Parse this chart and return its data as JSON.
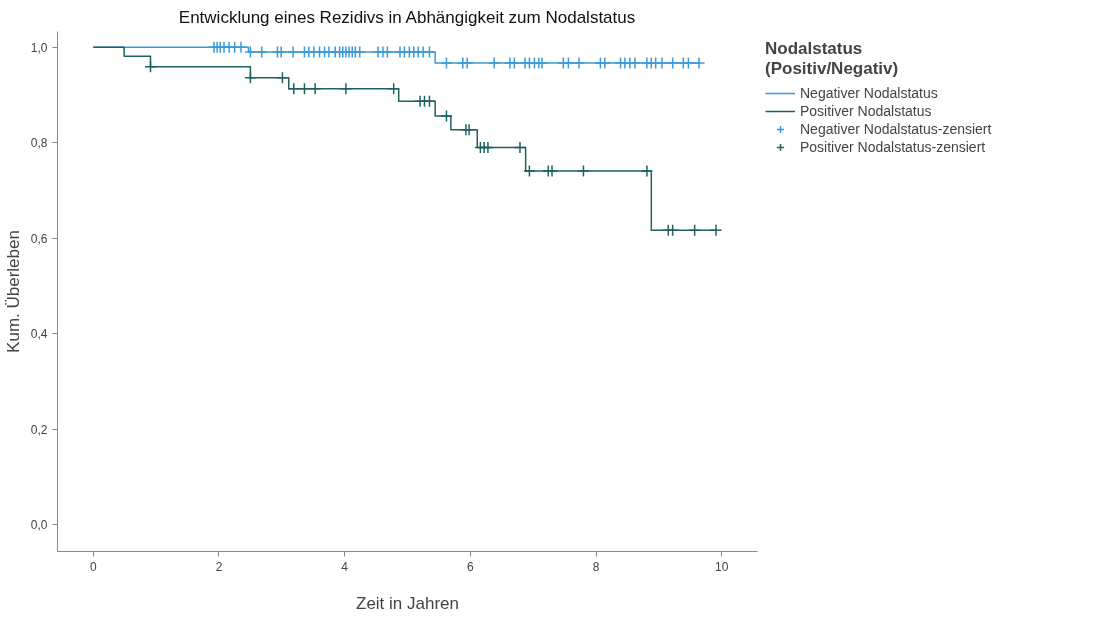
{
  "chart_data": {
    "type": "step",
    "title": "Entwicklung eines Rezidivs in Abhängigkeit zum Nodalstatus",
    "xlabel": "Zeit in Jahren",
    "ylabel": "Kum. Überleben",
    "legend_title": "Nodalstatus\n(Positiv/Negativ)",
    "xlim": [
      -0.57,
      10.57
    ],
    "ylim": [
      -0.056,
      1.033
    ],
    "xticks": [
      0,
      2,
      4,
      6,
      8,
      10
    ],
    "yticks": [
      {
        "value": 0,
        "label": "0,0"
      },
      {
        "value": 0.2,
        "label": "0,2"
      },
      {
        "value": 0.4,
        "label": "0,4"
      },
      {
        "value": 0.6,
        "label": "0,6"
      },
      {
        "value": 0.8,
        "label": "0,8"
      },
      {
        "value": 1.0,
        "label": "1,0"
      }
    ],
    "grid": false,
    "legend": "right",
    "line_style": "solid",
    "series": [
      {
        "name": "Negativer Nodalstatus",
        "color": "#3a9ad9",
        "x": [
          0,
          2.47,
          5.44,
          9.66
        ],
        "values": [
          1.0,
          0.99,
          0.967,
          0.967
        ]
      },
      {
        "name": "Positiver Nodalstatus",
        "color": "#1f6060",
        "x": [
          0,
          0.49,
          0.91,
          2.5,
          3.11,
          4.86,
          5.44,
          5.69,
          6.11,
          6.88,
          8.88,
          9.91
        ],
        "values": [
          1.0,
          0.981,
          0.959,
          0.936,
          0.913,
          0.887,
          0.856,
          0.827,
          0.79,
          0.741,
          0.617,
          0.617
        ]
      },
      {
        "name": "Negativer Nodalstatus-zensiert",
        "type": "scatter",
        "marker": "cross",
        "color": "#3a9ad9",
        "x": [
          1.92,
          1.97,
          2.02,
          2.08,
          2.16,
          2.25,
          2.35,
          2.5,
          2.68,
          2.93,
          2.99,
          3.18,
          3.36,
          3.43,
          3.51,
          3.6,
          3.68,
          3.75,
          3.85,
          3.92,
          3.97,
          4.02,
          4.07,
          4.12,
          4.17,
          4.24,
          4.53,
          4.61,
          4.68,
          4.88,
          4.95,
          5.03,
          5.1,
          5.17,
          5.25,
          5.35,
          5.62,
          5.88,
          5.95,
          6.38,
          6.63,
          6.7,
          6.87,
          6.94,
          7.02,
          7.09,
          7.14,
          7.48,
          7.56,
          7.73,
          8.07,
          8.14,
          8.39,
          8.46,
          8.54,
          8.62,
          8.81,
          8.88,
          8.95,
          9.05,
          9.22,
          9.39,
          9.47,
          9.64
        ],
        "values": [
          1.0,
          1.0,
          1.0,
          1.0,
          1.0,
          1.0,
          1.0,
          0.99,
          0.99,
          0.99,
          0.99,
          0.99,
          0.99,
          0.99,
          0.99,
          0.99,
          0.99,
          0.99,
          0.99,
          0.99,
          0.99,
          0.99,
          0.99,
          0.99,
          0.99,
          0.99,
          0.99,
          0.99,
          0.99,
          0.99,
          0.99,
          0.99,
          0.99,
          0.99,
          0.99,
          0.99,
          0.967,
          0.967,
          0.967,
          0.967,
          0.967,
          0.967,
          0.967,
          0.967,
          0.967,
          0.967,
          0.967,
          0.967,
          0.967,
          0.967,
          0.967,
          0.967,
          0.967,
          0.967,
          0.967,
          0.967,
          0.967,
          0.967,
          0.967,
          0.967,
          0.967,
          0.967,
          0.967,
          0.967
        ]
      },
      {
        "name": "Positiver Nodalstatus-zensiert",
        "type": "scatter",
        "marker": "cross",
        "color": "#1f6060",
        "x": [
          0.91,
          2.5,
          3.01,
          3.19,
          3.36,
          3.53,
          4.02,
          4.78,
          5.2,
          5.27,
          5.35,
          5.62,
          5.93,
          5.98,
          6.16,
          6.22,
          6.28,
          6.79,
          6.94,
          7.24,
          7.3,
          7.8,
          8.81,
          9.15,
          9.22,
          9.57,
          9.91
        ],
        "values": [
          0.959,
          0.936,
          0.936,
          0.913,
          0.913,
          0.913,
          0.913,
          0.913,
          0.887,
          0.887,
          0.887,
          0.856,
          0.827,
          0.827,
          0.79,
          0.79,
          0.79,
          0.79,
          0.741,
          0.741,
          0.741,
          0.741,
          0.741,
          0.617,
          0.617,
          0.617,
          0.617
        ]
      }
    ]
  }
}
